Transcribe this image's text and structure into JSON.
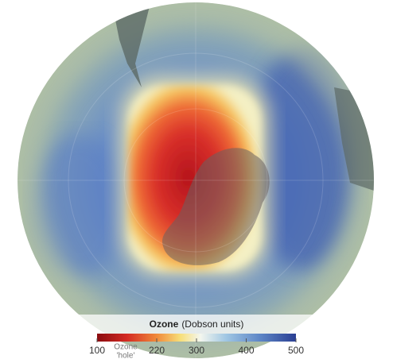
{
  "legend": {
    "title": "Ozone",
    "units": "(Dobson units)",
    "range": [
      100,
      500
    ],
    "ticks": [
      100,
      220,
      300,
      400,
      500
    ],
    "annotation": [
      "Ozone",
      "'hole'"
    ]
  }
}
